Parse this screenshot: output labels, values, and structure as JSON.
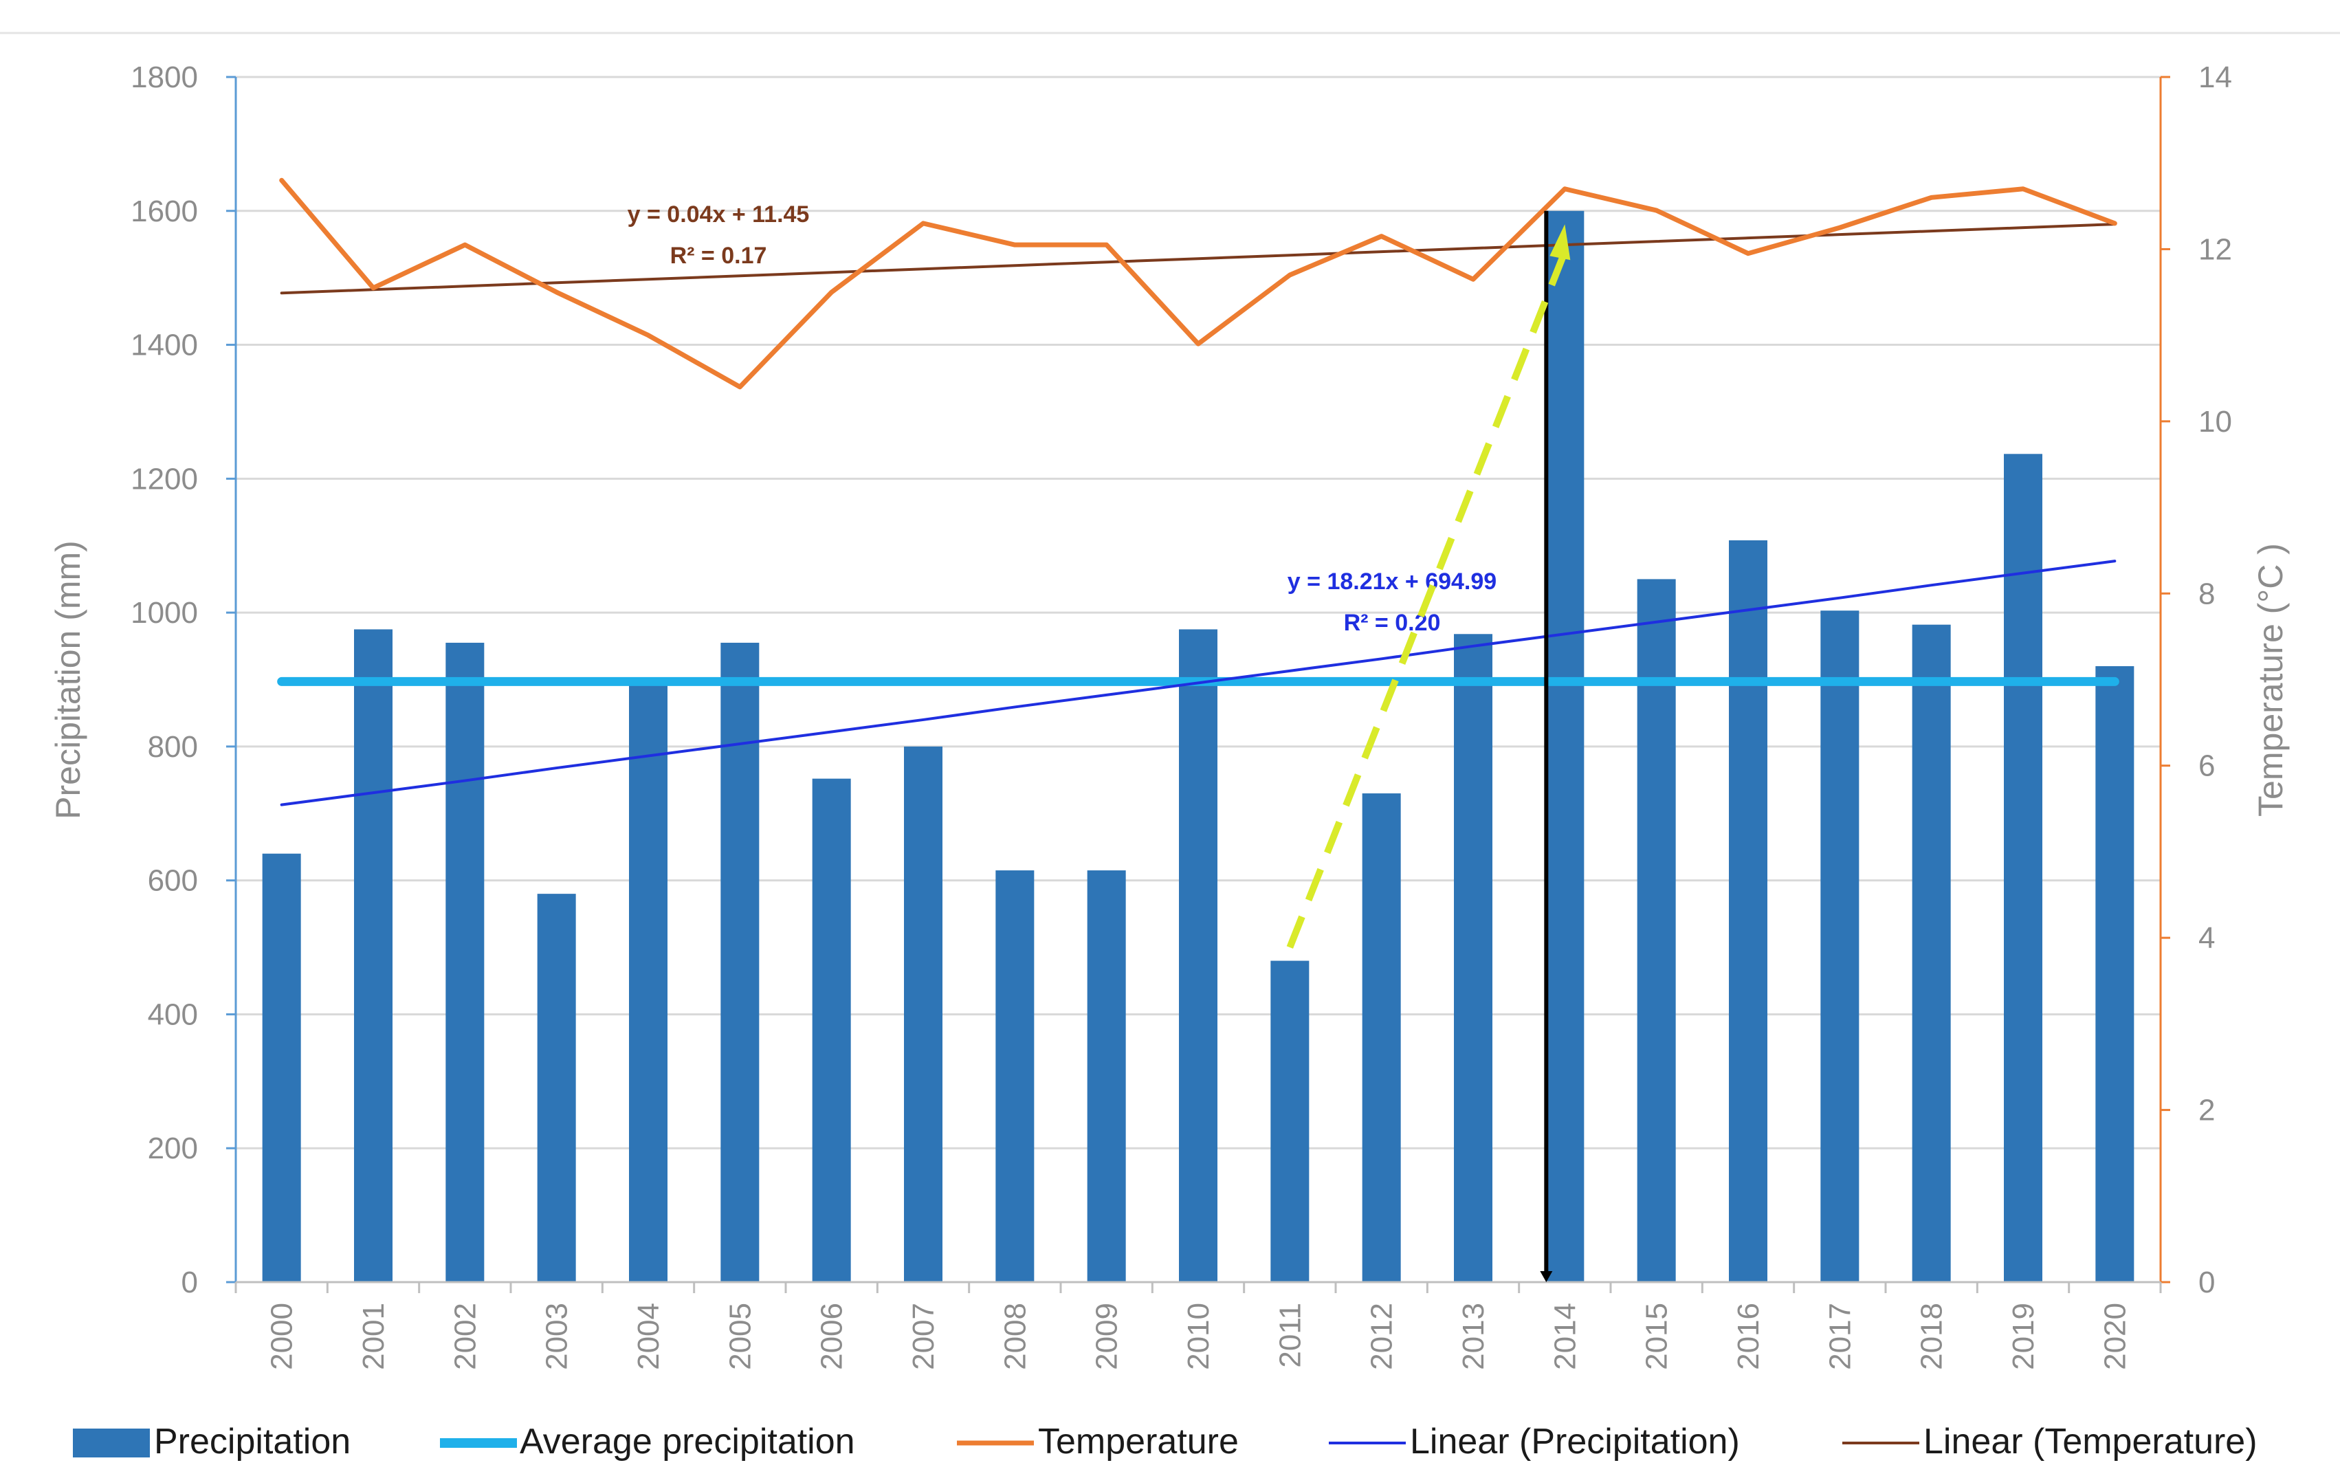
{
  "chart_data": {
    "type": "bar",
    "categories": [
      "2000",
      "2001",
      "2002",
      "2003",
      "2004",
      "2005",
      "2006",
      "2007",
      "2008",
      "2009",
      "2010",
      "2011",
      "2012",
      "2013",
      "2014",
      "2015",
      "2016",
      "2017",
      "2018",
      "2019",
      "2020"
    ],
    "series": [
      {
        "name": "Precipitation",
        "type": "bar",
        "axis": "left",
        "color": "#2e75b6",
        "values": [
          640,
          975,
          955,
          580,
          895,
          955,
          752,
          800,
          615,
          615,
          975,
          480,
          730,
          968,
          1600,
          1050,
          1108,
          1003,
          982,
          1237,
          920
        ]
      },
      {
        "name": "Average precipitation",
        "type": "line",
        "axis": "left",
        "color": "#1fb0ea",
        "values": [
          897,
          897,
          897,
          897,
          897,
          897,
          897,
          897,
          897,
          897,
          897,
          897,
          897,
          897,
          897,
          897,
          897,
          897,
          897,
          897,
          897
        ]
      },
      {
        "name": "Temperature",
        "type": "line",
        "axis": "right",
        "color": "#ed7d31",
        "values": [
          12.8,
          11.55,
          12.05,
          11.5,
          11.0,
          10.4,
          11.5,
          12.3,
          12.05,
          12.05,
          10.9,
          11.7,
          12.15,
          11.65,
          12.7,
          12.45,
          11.95,
          12.25,
          12.6,
          12.7,
          12.3
        ]
      },
      {
        "name": "Linear (Precipitation)",
        "type": "trendline",
        "axis": "left",
        "color": "#1f2fe0",
        "values": [
          713,
          731,
          749,
          768,
          786,
          804,
          822,
          840,
          859,
          877,
          895,
          913,
          931,
          950,
          968,
          986,
          1004,
          1022,
          1041,
          1059,
          1077
        ]
      },
      {
        "name": "Linear (Temperature)",
        "type": "trendline",
        "axis": "right",
        "color": "#7b3a1d",
        "values": [
          11.49,
          11.53,
          11.57,
          11.61,
          11.65,
          11.69,
          11.73,
          11.77,
          11.81,
          11.85,
          11.89,
          11.93,
          11.97,
          12.01,
          12.05,
          12.09,
          12.13,
          12.17,
          12.21,
          12.25,
          12.29
        ]
      }
    ],
    "y_left": {
      "label": "Precipitation (mm)",
      "min": 0,
      "max": 1800,
      "ticks": [
        "0",
        "200",
        "400",
        "600",
        "800",
        "1000",
        "1200",
        "1400",
        "1600",
        "1800"
      ],
      "color": "#5b9bd5"
    },
    "y_right": {
      "label": "Temperature (°C )",
      "min": 0,
      "max": 14,
      "ticks": [
        "0",
        "2",
        "4",
        "6",
        "8",
        "10",
        "12",
        "14"
      ],
      "color": "#ed7d31"
    },
    "annotations": {
      "temp_equation": "y = 0.04x + 11.45",
      "temp_r2": "R² = 0.17",
      "precip_equation": "y = 18.21x + 694.99",
      "precip_r2": "R² = 0.20",
      "dashed_arrow": {
        "from_category": "2011",
        "from_value": 500,
        "to_category": "2014",
        "to_value": 1580,
        "color": "#d9ea2a"
      },
      "vertical_marker": {
        "category": "2014",
        "from_value": 1600,
        "to_value": 0,
        "color": "#000000"
      }
    },
    "grid": true,
    "legend": "bottom"
  }
}
